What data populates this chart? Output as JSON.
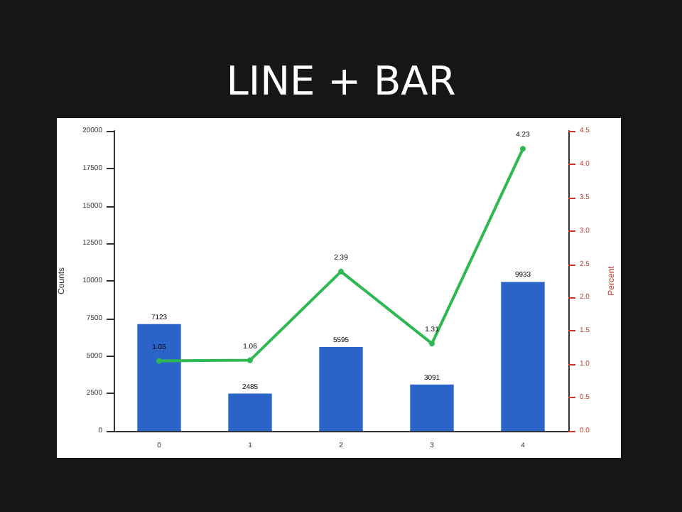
{
  "chart_data": {
    "type": "bar",
    "title": "LINE + BAR",
    "ylabel": "Counts",
    "y2label": "Percent",
    "categories": [
      "0",
      "1",
      "2",
      "3",
      "4"
    ],
    "series": [
      {
        "color": "#2a64c8",
        "values": [
          7123,
          2485,
          5595,
          3091,
          9933
        ]
      },
      {
        "type": "line",
        "axis": "y2",
        "color": "#2db852",
        "marker": "circle",
        "line_style": "solid",
        "values": [
          1.05,
          1.06,
          2.39,
          1.31,
          4.23
        ]
      }
    ],
    "data_labels": true,
    "grid": false,
    "ylim": [
      0,
      20000
    ],
    "yticks": [
      0,
      2500,
      5000,
      7500,
      10000,
      12500,
      15000,
      17500,
      20000
    ],
    "y2lim": [
      0,
      4.5
    ],
    "y2ticks": [
      {
        "value": 0,
        "label": "0.0"
      },
      {
        "value": 0.5,
        "label": "0.5"
      },
      {
        "value": 1,
        "label": "1.0"
      },
      {
        "value": 1.5,
        "label": "1.5"
      },
      {
        "value": 2,
        "label": "2.0"
      },
      {
        "value": 2.5,
        "label": "2.5"
      },
      {
        "value": 3,
        "label": "3.0"
      },
      {
        "value": 3.5,
        "label": "3.5"
      },
      {
        "value": 4,
        "label": "4.0"
      },
      {
        "value": 4.5,
        "label": "4.5"
      }
    ]
  }
}
